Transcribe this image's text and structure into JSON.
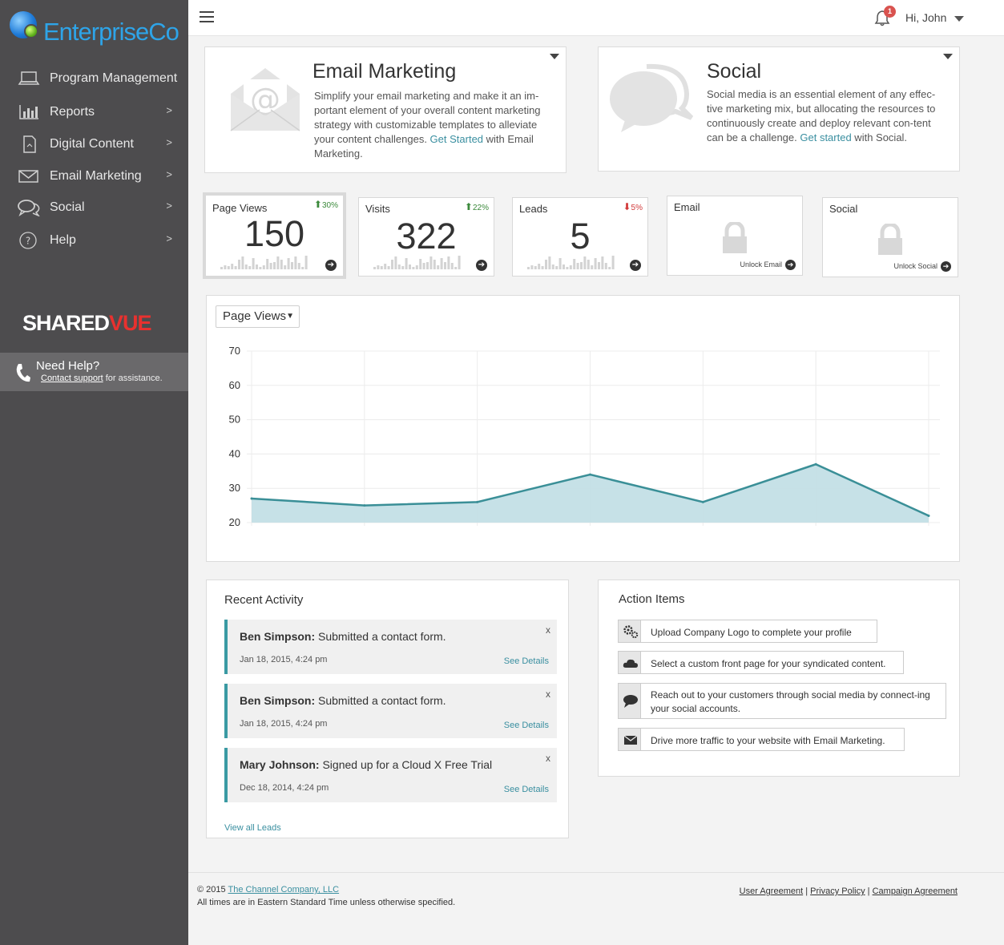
{
  "brand": {
    "name": "EnterpriseCo"
  },
  "sidebar": {
    "items": [
      {
        "label": "Program Management",
        "icon": "laptop-icon",
        "chevron": ""
      },
      {
        "label": "Reports",
        "icon": "bar-chart-icon",
        "chevron": ">"
      },
      {
        "label": "Digital Content",
        "icon": "document-icon",
        "chevron": ">"
      },
      {
        "label": "Email Marketing",
        "icon": "envelope-icon",
        "chevron": ">"
      },
      {
        "label": "Social",
        "icon": "chat-bubbles-icon",
        "chevron": ">"
      },
      {
        "label": "Help",
        "icon": "question-circle-icon",
        "chevron": ">"
      }
    ],
    "partner_logo": {
      "part1": "SHARED",
      "part2": "VUE"
    },
    "help": {
      "title": "Need Help?",
      "link": "Contact support",
      "suffix": " for assistance."
    }
  },
  "topbar": {
    "notification_count": "1",
    "greeting": "Hi, John"
  },
  "promos": {
    "email": {
      "title": "Email Marketing",
      "desc_before": "Simplify your email marketing and make it an im-portant element of your overall content marketing strategy with customizable templates to alleviate your content challenges. ",
      "link": "Get Started",
      "desc_after": " with Email Marketing."
    },
    "social": {
      "title": "Social",
      "desc_before": "Social media is an essential element of any effec-tive marketing mix, but allocating the resources to continuously create and deploy relevant con-tent can be a challenge. ",
      "link": "Get started",
      "desc_after": " with Social."
    }
  },
  "stats": [
    {
      "label": "Page Views",
      "value": "150",
      "change": "30%",
      "direction": "up"
    },
    {
      "label": "Visits",
      "value": "322",
      "change": "22%",
      "direction": "up"
    },
    {
      "label": "Leads",
      "value": "5",
      "change": "5%",
      "direction": "down"
    },
    {
      "label": "Email",
      "unlock": "Unlock Email"
    },
    {
      "label": "Social",
      "unlock": "Unlock Social"
    }
  ],
  "chart": {
    "selected": "Page Views",
    "colors": {
      "line": "#3a8f97",
      "fill": "#c3dfe6"
    }
  },
  "chart_data": {
    "type": "area",
    "x": [
      1,
      2,
      3,
      4,
      5,
      6,
      7
    ],
    "series": [
      {
        "values": [
          27,
          25,
          26,
          34,
          26,
          37,
          22
        ]
      }
    ],
    "ylim": [
      20,
      70
    ],
    "yticks": [
      20,
      30,
      40,
      50,
      60,
      70
    ],
    "grid": true
  },
  "recent_activity": {
    "title": "Recent Activity",
    "items": [
      {
        "name": "Ben Simpson:",
        "action": " Submitted a contact form.",
        "date": "Jan 18, 2015, 4:24 pm",
        "close": "x",
        "link": "See Details"
      },
      {
        "name": "Ben Simpson:",
        "action": " Submitted a contact form.",
        "date": "Jan 18, 2015, 4:24 pm",
        "close": "x",
        "link": "See Details"
      },
      {
        "name": "Mary Johnson:",
        "action": " Signed up for a Cloud X Free Trial",
        "date": "Dec 18, 2014, 4:24 pm",
        "close": "x",
        "link": "See Details"
      }
    ],
    "view_all": "View all Leads"
  },
  "action_items": {
    "title": "Action Items",
    "items": [
      {
        "text": "Upload Company Logo to complete your profile",
        "icon": "gears-icon"
      },
      {
        "text": "Select a custom front page for your syndicated content.",
        "icon": "cloud-icon"
      },
      {
        "text": "Reach out to your customers through social media by connect-ing your social accounts.",
        "icon": "chat-icon"
      },
      {
        "text": "Drive more traffic to your website with Email Marketing.",
        "icon": "envelope-icon"
      }
    ]
  },
  "footer": {
    "copyright": "© 2015 ",
    "company": "The Channel Company, LLC",
    "timezone": "All times are in Eastern Standard Time unless otherwise specified.",
    "links": [
      "User Agreement",
      "Privacy Policy",
      "Campaign Agreement"
    ],
    "separator": " | "
  }
}
